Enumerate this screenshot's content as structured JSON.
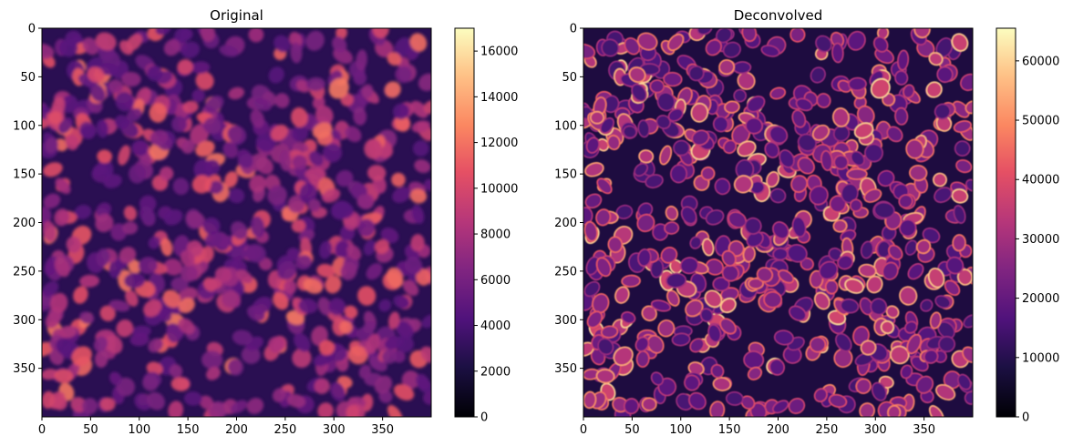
{
  "chart_data": [
    {
      "type": "heatmap",
      "title": "Original",
      "colormap": "magma",
      "x_ticks": [
        0,
        50,
        100,
        150,
        200,
        250,
        300,
        350
      ],
      "y_ticks": [
        0,
        50,
        100,
        150,
        200,
        250,
        300,
        350
      ],
      "xlim": [
        0,
        400
      ],
      "ylim": [
        400,
        0
      ],
      "colorbar": {
        "range": [
          0,
          17000
        ],
        "ticks": [
          0,
          2000,
          4000,
          6000,
          8000,
          10000,
          12000,
          14000,
          16000
        ]
      }
    },
    {
      "type": "heatmap",
      "title": "Deconvolved",
      "colormap": "magma",
      "x_ticks": [
        0,
        50,
        100,
        150,
        200,
        250,
        300,
        350
      ],
      "y_ticks": [
        0,
        50,
        100,
        150,
        200,
        250,
        300,
        350
      ],
      "xlim": [
        0,
        400
      ],
      "ylim": [
        400,
        0
      ],
      "colorbar": {
        "range": [
          0,
          65500
        ],
        "ticks": [
          0,
          10000,
          20000,
          30000,
          40000,
          50000,
          60000
        ]
      }
    }
  ]
}
